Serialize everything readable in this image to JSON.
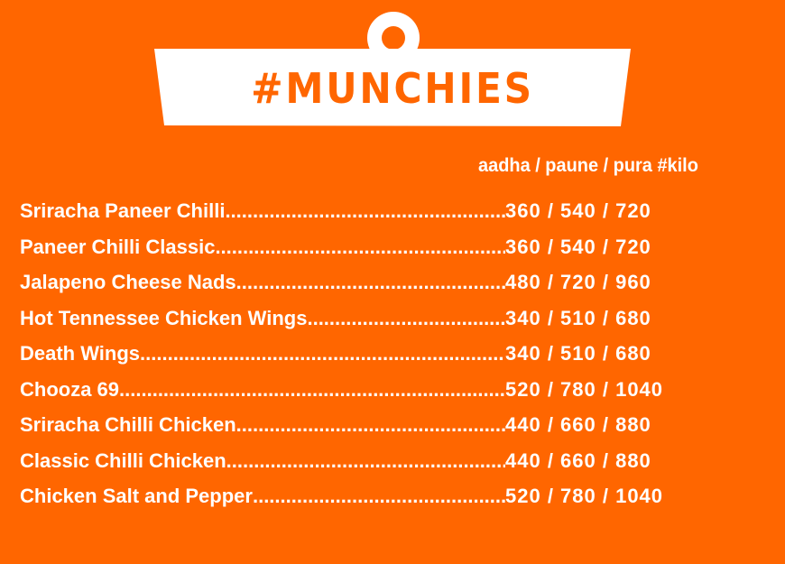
{
  "colors": {
    "background": "#FF6600",
    "tag": "#FFFFFF",
    "text": "#FFFFFF"
  },
  "header": {
    "title": "#MUNCHIES",
    "sizes_label": "aadha / paune / pura #kilo"
  },
  "items": [
    {
      "name": "Sriracha Paneer Chilli",
      "price": "360 / 540 / 720"
    },
    {
      "name": "Paneer Chilli Classic",
      "price": "360 / 540 / 720"
    },
    {
      "name": "Jalapeno Cheese Nads",
      "price": "480 / 720 / 960"
    },
    {
      "name": "Hot Tennessee Chicken Wings",
      "price": "340 / 510 / 680"
    },
    {
      "name": "Death Wings",
      "price": "340 / 510 / 680"
    },
    {
      "name": "Chooza 69",
      "price": "520 / 780 / 1040"
    },
    {
      "name": "Sriracha Chilli Chicken",
      "price": "440 / 660 / 880"
    },
    {
      "name": "Classic Chilli Chicken",
      "price": "440 / 660 / 880"
    },
    {
      "name": "Chicken Salt and Pepper",
      "price": "520 / 780 / 1040"
    }
  ]
}
